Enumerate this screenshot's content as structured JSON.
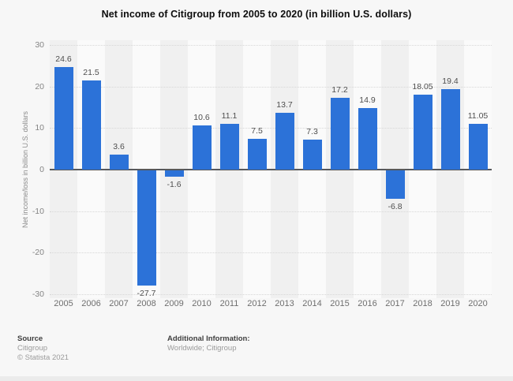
{
  "title": "Net income of Citigroup from 2005 to 2020 (in billion U.S. dollars)",
  "chart_data": {
    "type": "bar",
    "categories": [
      "2005",
      "2006",
      "2007",
      "2008",
      "2009",
      "2010",
      "2011",
      "2012",
      "2013",
      "2014",
      "2015",
      "2016",
      "2017",
      "2018",
      "2019",
      "2020"
    ],
    "values": [
      24.6,
      21.5,
      3.6,
      -27.7,
      -1.6,
      10.6,
      11.1,
      7.5,
      13.7,
      7.3,
      17.2,
      14.9,
      -6.8,
      18.05,
      19.4,
      11.05
    ],
    "title": "Net income of Citigroup from 2005 to 2020 (in billion U.S. dollars)",
    "xlabel": "",
    "ylabel": "Net income/loss in billion U.S. dollars",
    "ylim": [
      -30,
      30
    ],
    "yticks": [
      30,
      20,
      10,
      0,
      -10,
      -20,
      -30
    ],
    "grid": true,
    "legend": "none",
    "bar_color": "#2c72d8",
    "band_color_even": "#f0f0f0",
    "band_color_odd": "#fafafa",
    "zero_line_color": "#58595b",
    "page_background": "#f7f7f7"
  },
  "footer": {
    "source_heading": "Source",
    "source_lines": [
      "Citigroup",
      "© Statista 2021"
    ],
    "additional_heading": "Additional Information:",
    "additional_lines": [
      "Worldwide; Citigroup"
    ]
  }
}
